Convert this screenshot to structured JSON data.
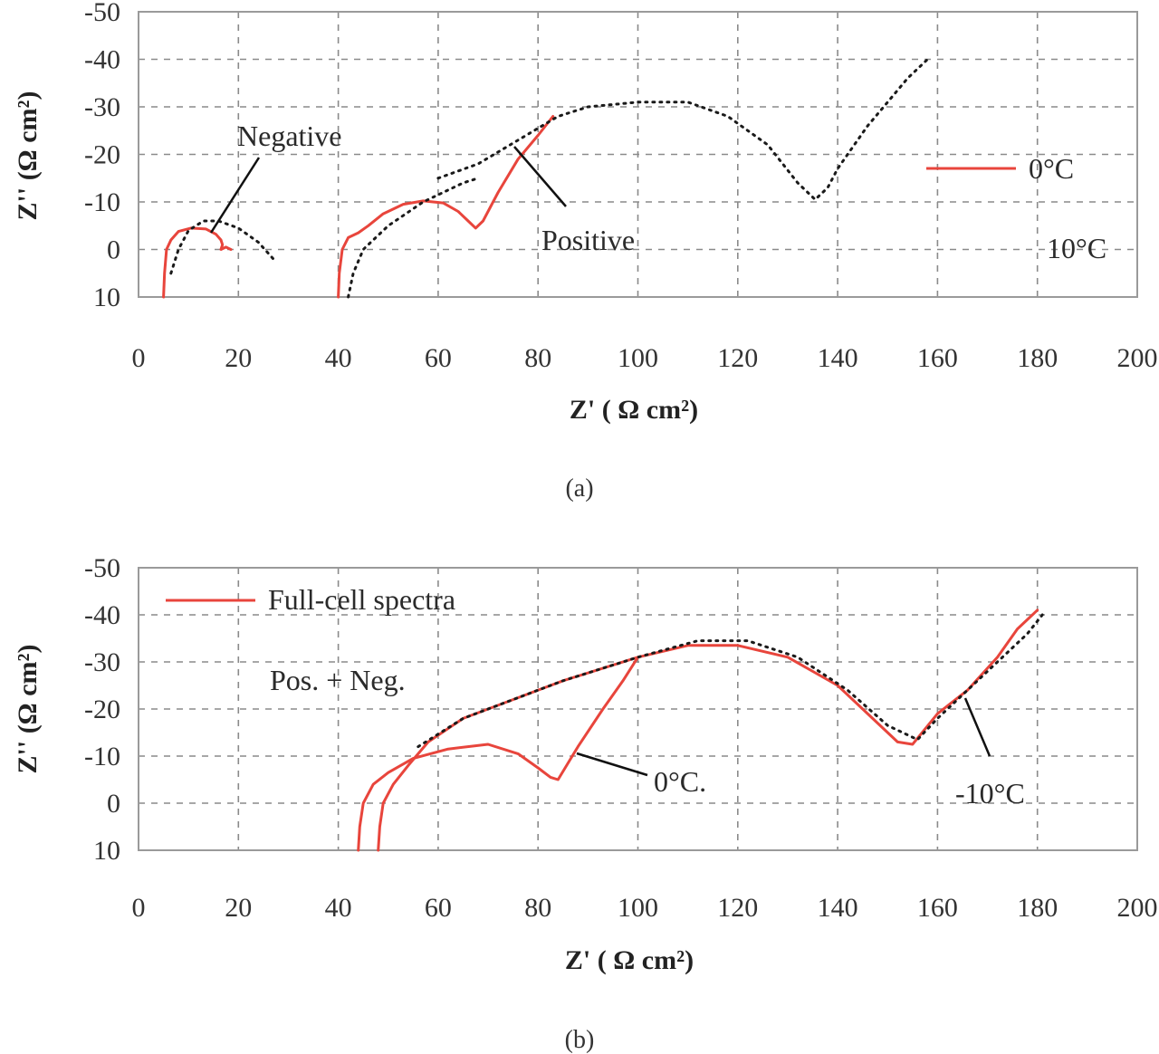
{
  "colors": {
    "red": "#e8453c",
    "dotted": "#1a1a1a",
    "grid": "#8a8a8a"
  },
  "chart_data": [
    {
      "panel_label": "(a)",
      "type": "line",
      "xlabel": "Z' ( Ω cm²)",
      "ylabel": "Z'' (Ω cm²)",
      "xlim": [
        0,
        200
      ],
      "ylim": [
        10,
        -50
      ],
      "xticks": [
        "0",
        "20",
        "40",
        "60",
        "80",
        "100",
        "120",
        "140",
        "160",
        "180",
        "200"
      ],
      "yticks": [
        "-50",
        "-40",
        "-30",
        "-20",
        "-10",
        "0",
        "10"
      ],
      "ytick_values": [
        -50,
        -40,
        -30,
        -20,
        -10,
        0,
        10
      ],
      "grid": true,
      "annotations": [
        "Negative",
        "Positive"
      ],
      "legend": [
        "0°C",
        "10°C"
      ],
      "series": [
        {
          "name": "0°C",
          "style": "solid",
          "color": "#e8453c",
          "x": [
            5,
            5.2,
            5.6,
            6.5,
            8,
            10.5,
            13.5,
            15.5,
            16.5,
            16.8,
            16.5,
            17.5,
            18.5
          ],
          "y": [
            10,
            5,
            0,
            -2,
            -3.8,
            -4.5,
            -4.3,
            -3.2,
            -2,
            -1,
            0,
            -0.5,
            0
          ]
        },
        {
          "name": "0°C",
          "style": "solid",
          "color": "#e8453c",
          "x": [
            40,
            40.2,
            40.8,
            42,
            44,
            46,
            49,
            53,
            57,
            61,
            64,
            66,
            67.5,
            69,
            72,
            76,
            80,
            83
          ],
          "y": [
            10,
            5,
            0,
            -2.5,
            -3.5,
            -5,
            -7.5,
            -9.5,
            -10.2,
            -9.8,
            -8,
            -6,
            -4.5,
            -6,
            -12,
            -19,
            -24,
            -28
          ]
        },
        {
          "name": "10°C",
          "style": "dotted",
          "color": "#1a1a1a",
          "x": [
            6.5,
            8,
            10,
            13,
            16,
            20,
            24,
            27
          ],
          "y": [
            5,
            0,
            -4,
            -6,
            -6,
            -4.5,
            -1.5,
            2
          ]
        },
        {
          "name": "10°C",
          "style": "dotted",
          "color": "#1a1a1a",
          "x": [
            42,
            43,
            45,
            50,
            57,
            61,
            65,
            68
          ],
          "y": [
            10,
            5,
            0,
            -5,
            -10,
            -12,
            -14,
            -15
          ]
        },
        {
          "name": "10°C",
          "style": "dotted",
          "color": "#1a1a1a",
          "x": [
            60,
            68,
            76,
            84,
            90,
            100,
            110,
            118,
            126,
            132,
            135.5,
            138,
            140,
            142,
            146,
            150,
            154,
            158
          ],
          "y": [
            -15,
            -18,
            -23,
            -28,
            -30,
            -31,
            -31,
            -28,
            -22,
            -14,
            -10.5,
            -13,
            -17,
            -20,
            -26,
            -31,
            -36,
            -40
          ]
        }
      ]
    },
    {
      "panel_label": "(b)",
      "type": "line",
      "xlabel": "Z' ( Ω cm²)",
      "ylabel": "Z'' (Ω cm²)",
      "xlim": [
        0,
        200
      ],
      "ylim": [
        10,
        -50
      ],
      "xticks": [
        "0",
        "20",
        "40",
        "60",
        "80",
        "100",
        "120",
        "140",
        "160",
        "180",
        "200"
      ],
      "yticks": [
        "-50",
        "-40",
        "-30",
        "-20",
        "-10",
        "0",
        "10"
      ],
      "ytick_values": [
        -50,
        -40,
        -30,
        -20,
        -10,
        0,
        10
      ],
      "grid": true,
      "annotations": [
        "Pos. + Neg.",
        "0°C.",
        "-10°C"
      ],
      "legend": [
        "Full-cell spectra"
      ],
      "series": [
        {
          "name": "Full-cell spectra",
          "style": "solid",
          "color": "#e8453c",
          "x": [
            44,
            44.3,
            45,
            47,
            50,
            55,
            62,
            70,
            76,
            80,
            82.5,
            84,
            88,
            93,
            97,
            100
          ],
          "y": [
            10,
            5,
            0,
            -4,
            -6.5,
            -9.5,
            -11.5,
            -12.5,
            -10.5,
            -7.5,
            -5.5,
            -5,
            -12,
            -20,
            -26,
            -31
          ]
        },
        {
          "name": "Full-cell spectra",
          "style": "solid",
          "color": "#e8453c",
          "x": [
            48,
            48.3,
            49,
            51,
            54,
            58,
            65,
            75,
            85,
            100,
            110,
            120,
            130,
            140,
            147,
            152,
            155,
            160,
            166,
            172,
            176,
            180
          ],
          "y": [
            10,
            5,
            0,
            -4,
            -8,
            -13,
            -18,
            -22,
            -26,
            -31,
            -33.5,
            -33.5,
            -31,
            -25,
            -18,
            -13,
            -12.5,
            -19,
            -24,
            -31,
            -37,
            -41
          ]
        },
        {
          "name": "",
          "style": "dotted",
          "color": "#1a1a1a",
          "x": [
            56,
            65,
            75,
            85,
            100,
            112,
            122,
            132,
            142,
            150,
            156,
            160,
            166,
            172,
            178,
            181
          ],
          "y": [
            -12,
            -18,
            -22,
            -26,
            -31,
            -34.5,
            -34.5,
            -31,
            -24,
            -16.5,
            -13.5,
            -18,
            -24,
            -30,
            -36,
            -40
          ]
        }
      ]
    }
  ]
}
